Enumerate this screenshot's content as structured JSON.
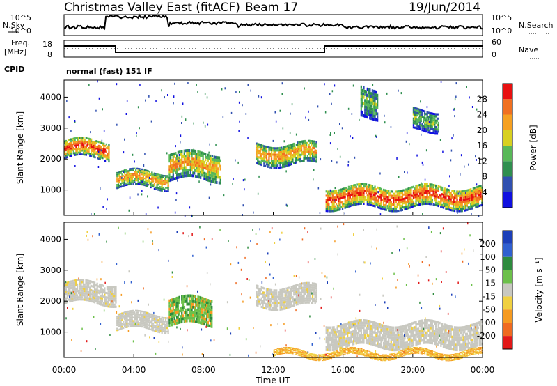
{
  "header": {
    "title": "Christmas Valley East (fitACF)",
    "beam": "Beam 17",
    "date": "19/Jun/2014"
  },
  "top_panels": {
    "nsky_label": "N.Sky",
    "nsearch_label": "N.Search",
    "noise_ticks": [
      "10^5",
      "10^0"
    ],
    "freq_label_1": "Freq.",
    "freq_label_2": "[MHz]",
    "freq_ticks": [
      "18",
      "8"
    ],
    "nave_label": "Nave",
    "nave_ticks": [
      "60",
      "0"
    ],
    "cpid_label": "CPID",
    "cpid_value": "normal (fast) 151 IF"
  },
  "colorbars": {
    "power": {
      "label": "Power [dB]",
      "ticks": [
        "4",
        "8",
        "12",
        "16",
        "20",
        "24",
        "28"
      ],
      "colors": [
        "#1010e0",
        "#3050b0",
        "#2f8f4f",
        "#58b858",
        "#d8d020",
        "#f5a020",
        "#f07020",
        "#e81010"
      ]
    },
    "velocity": {
      "label": "Velocity [m s⁻¹]",
      "ticks": [
        "200",
        "100",
        "50",
        "15",
        "-15",
        "-50",
        "-100",
        "-200"
      ],
      "colors": [
        "#1c3fb8",
        "#3060d0",
        "#2e8b3e",
        "#6cc04a",
        "#c8c8c0",
        "#f0d040",
        "#f59a20",
        "#ef6a20",
        "#e21818"
      ]
    }
  },
  "chart_data": [
    {
      "type": "heatmap",
      "title": "Power",
      "xlabel": "Time UT",
      "ylabel": "Slant Range [km]",
      "x_ticks": [
        "00:00",
        "04:00",
        "08:00",
        "12:00",
        "16:00",
        "20:00",
        "00:00"
      ],
      "y_ticks": [
        1000,
        2000,
        3000,
        4000
      ],
      "xlim_hours": [
        0,
        24
      ],
      "ylim_km": [
        180,
        4550
      ],
      "clim_db": [
        0,
        32
      ],
      "bands": [
        {
          "t0": 0.0,
          "t1": 2.6,
          "r0": 2000,
          "r1": 2600,
          "level": "high"
        },
        {
          "t0": 3.0,
          "t1": 6.0,
          "r0": 1050,
          "r1": 1600,
          "level": "mid"
        },
        {
          "t0": 6.0,
          "t1": 9.0,
          "r0": 1300,
          "r1": 2200,
          "level": "mid"
        },
        {
          "t0": 11.0,
          "t1": 14.5,
          "r0": 1800,
          "r1": 2500,
          "level": "mid"
        },
        {
          "t0": 15.0,
          "t1": 24.0,
          "r0": 400,
          "r1": 1100,
          "level": "high"
        },
        {
          "t0": 17.0,
          "t1": 18.0,
          "r0": 3300,
          "r1": 4300,
          "level": "low"
        },
        {
          "t0": 20.0,
          "t1": 21.5,
          "r0": 2900,
          "r1": 3600,
          "level": "low"
        }
      ]
    },
    {
      "type": "heatmap",
      "title": "Velocity",
      "xlabel": "Time UT",
      "ylabel": "Slant Range [km]",
      "x_ticks": [
        "00:00",
        "04:00",
        "08:00",
        "12:00",
        "16:00",
        "20:00",
        "00:00"
      ],
      "y_ticks": [
        1000,
        2000,
        3000,
        4000
      ],
      "xlim_hours": [
        0,
        24
      ],
      "ylim_km": [
        180,
        4550
      ],
      "clim_ms": [
        -250,
        250
      ],
      "bands": [
        {
          "t0": 0.0,
          "t1": 3.0,
          "r0": 1900,
          "r1": 2600,
          "vel": "ground"
        },
        {
          "t0": 3.0,
          "t1": 6.0,
          "r0": 1050,
          "r1": 1600,
          "vel": "ground"
        },
        {
          "t0": 6.0,
          "t1": 8.5,
          "r0": 1200,
          "r1": 2100,
          "vel": "positive"
        },
        {
          "t0": 11.0,
          "t1": 14.5,
          "r0": 1800,
          "r1": 2500,
          "vel": "ground"
        },
        {
          "t0": 15.0,
          "t1": 24.0,
          "r0": 500,
          "r1": 1300,
          "vel": "ground"
        },
        {
          "t0": 12.0,
          "t1": 24.0,
          "r0": 180,
          "r1": 400,
          "vel": "negative"
        }
      ]
    }
  ]
}
